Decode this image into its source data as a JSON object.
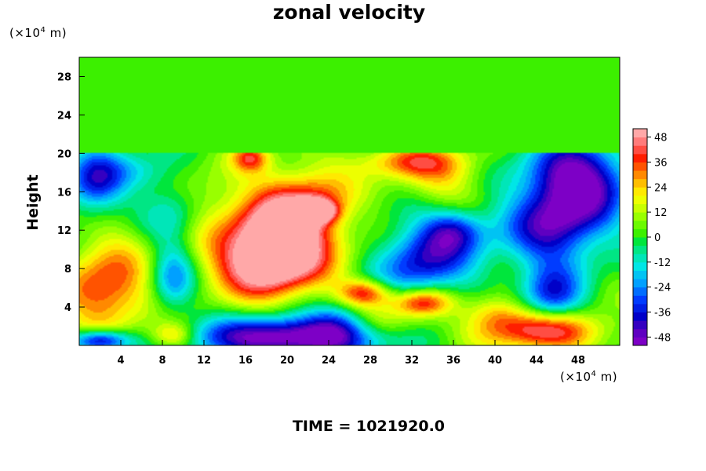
{
  "chart_data": {
    "type": "heatmap",
    "title": "zonal velocity",
    "xlabel": "",
    "ylabel": "Height",
    "x_unit_label": {
      "prefix": "(×10",
      "exp": "4",
      "suffix": " m)"
    },
    "y_unit_label": {
      "prefix": "(×10",
      "exp": "4",
      "suffix": " m)"
    },
    "xlim": [
      0,
      52
    ],
    "ylim": [
      0,
      30
    ],
    "x_ticks": [
      4,
      8,
      12,
      16,
      20,
      24,
      28,
      32,
      36,
      40,
      44,
      48
    ],
    "y_ticks": [
      4,
      8,
      12,
      16,
      20,
      24,
      28
    ],
    "colorbar": {
      "range": [
        -52,
        52
      ],
      "ticks": [
        48,
        36,
        24,
        12,
        0,
        -12,
        -24,
        -36,
        -48
      ],
      "placement": "right"
    },
    "footer": "TIME = 1021920.0",
    "features": [
      {
        "x": 19,
        "y": 10,
        "value": 52,
        "sx": 3.0,
        "sy": 3.0
      },
      {
        "x": 20,
        "y": 12,
        "value": 25,
        "sx": 5.5,
        "sy": 4.0
      },
      {
        "x": 22,
        "y": 15,
        "value": 22,
        "sx": 3.0,
        "sy": 2.5
      },
      {
        "x": 16,
        "y": 8,
        "value": 18,
        "sx": 3.5,
        "sy": 2.5
      },
      {
        "x": 23,
        "y": 14,
        "value": 45,
        "sx": 1.2,
        "sy": 0.8
      },
      {
        "x": 2.5,
        "y": 5.5,
        "value": 36,
        "sx": 3.0,
        "sy": 3.0
      },
      {
        "x": 45,
        "y": 1.5,
        "value": 44,
        "sx": 4.0,
        "sy": 1.5
      },
      {
        "x": 16.5,
        "y": 19.5,
        "value": 30,
        "sx": 1.2,
        "sy": 1.0
      },
      {
        "x": 31.5,
        "y": 19.2,
        "value": 26,
        "sx": 3.5,
        "sy": 1.2
      },
      {
        "x": 35,
        "y": 17.5,
        "value": 18,
        "sx": 3.0,
        "sy": 2.0
      },
      {
        "x": 27.5,
        "y": 5.5,
        "value": 38,
        "sx": 1.8,
        "sy": 1.0
      },
      {
        "x": 33,
        "y": 4.5,
        "value": 38,
        "sx": 2.0,
        "sy": 1.0
      },
      {
        "x": 30,
        "y": 2.5,
        "value": 18,
        "sx": 3.0,
        "sy": 1.5
      },
      {
        "x": 40,
        "y": 3.5,
        "value": 22,
        "sx": 2.0,
        "sy": 1.5
      },
      {
        "x": 9,
        "y": 1,
        "value": 28,
        "sx": 1.5,
        "sy": 1.0
      },
      {
        "x": 3,
        "y": 11,
        "value": 8,
        "sx": 3.0,
        "sy": 3.0
      },
      {
        "x": 20,
        "y": 0.8,
        "value": -60,
        "sx": 6.0,
        "sy": 1.5
      },
      {
        "x": 2,
        "y": 0.5,
        "value": -50,
        "sx": 2.0,
        "sy": 0.8
      },
      {
        "x": 1.5,
        "y": 17,
        "value": -38,
        "sx": 2.0,
        "sy": 2.5
      },
      {
        "x": 48,
        "y": 18,
        "value": -42,
        "sx": 3.5,
        "sy": 2.5
      },
      {
        "x": 47,
        "y": 14,
        "value": -36,
        "sx": 3.5,
        "sy": 3.0
      },
      {
        "x": 45.5,
        "y": 5,
        "value": -34,
        "sx": 2.0,
        "sy": 2.0
      },
      {
        "x": 36,
        "y": 12,
        "value": -30,
        "sx": 2.0,
        "sy": 1.5
      },
      {
        "x": 34,
        "y": 9,
        "value": -28,
        "sx": 2.5,
        "sy": 2.5
      },
      {
        "x": 31,
        "y": 8.5,
        "value": -20,
        "sx": 2.5,
        "sy": 3.0
      },
      {
        "x": 45,
        "y": 11,
        "value": -22,
        "sx": 3.0,
        "sy": 3.0
      },
      {
        "x": 9,
        "y": 7,
        "value": -28,
        "sx": 1.5,
        "sy": 2.5
      },
      {
        "x": 9,
        "y": 14,
        "value": -16,
        "sx": 2.0,
        "sy": 2.5
      },
      {
        "x": 6,
        "y": 18,
        "value": -14,
        "sx": 2.5,
        "sy": 1.5
      },
      {
        "x": 25,
        "y": 2.5,
        "value": -22,
        "sx": 2.0,
        "sy": 1.5
      },
      {
        "x": 38,
        "y": 10,
        "value": -8,
        "sx": 2.5,
        "sy": 3.0
      },
      {
        "x": 27,
        "y": 13,
        "value": -6,
        "sx": 2.0,
        "sy": 3.0
      },
      {
        "x": 12,
        "y": 16,
        "value": 8,
        "sx": 2.5,
        "sy": 2.0
      }
    ]
  }
}
